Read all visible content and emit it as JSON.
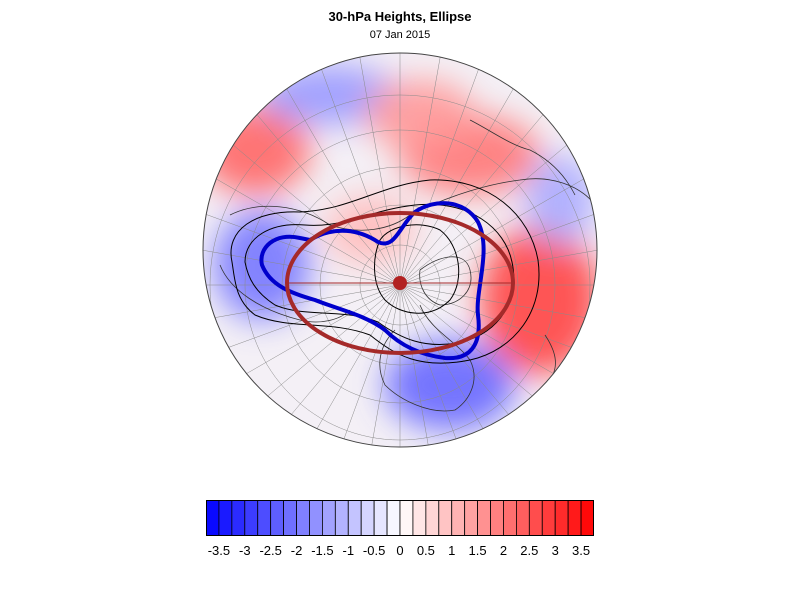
{
  "title": "30-hPa Heights, Ellipse",
  "subtitle": "07 Jan 2015",
  "colorbar": {
    "min": -3.75,
    "max": 3.75,
    "step": 0.25,
    "negative_color": "#0000ff",
    "zero_color": "#ffffff",
    "positive_color": "#ff0000",
    "tick_labels": [
      "-3.5",
      "-3",
      "-2.5",
      "-2",
      "-1.5",
      "-1",
      "-0.5",
      "0",
      "0.5",
      "1",
      "1.5",
      "2",
      "2.5",
      "3",
      "3.5"
    ]
  },
  "colors": {
    "vortex_edge": "#0000cc",
    "fitted_ellipse": "#a52a2a",
    "centroid": "#b22222",
    "contour": "#000000",
    "graticule": "#888888"
  },
  "map": {
    "projection": "north-polar-orthographic",
    "anomaly_field": [
      {
        "name": "warm-east-asia",
        "value": 2.75
      },
      {
        "name": "warm-north-atlantic",
        "value": 2.25
      },
      {
        "name": "warm-north-pacific",
        "value": 2.0
      },
      {
        "name": "cold-north-america",
        "value": -2.25
      },
      {
        "name": "cold-siberia",
        "value": -2.0
      },
      {
        "name": "cold-europe",
        "value": -1.5
      },
      {
        "name": "warm-central-asia",
        "value": 1.5
      },
      {
        "name": "cold-greenland",
        "value": -1.25
      },
      {
        "name": "warm-pole",
        "value": 1.0
      }
    ]
  }
}
